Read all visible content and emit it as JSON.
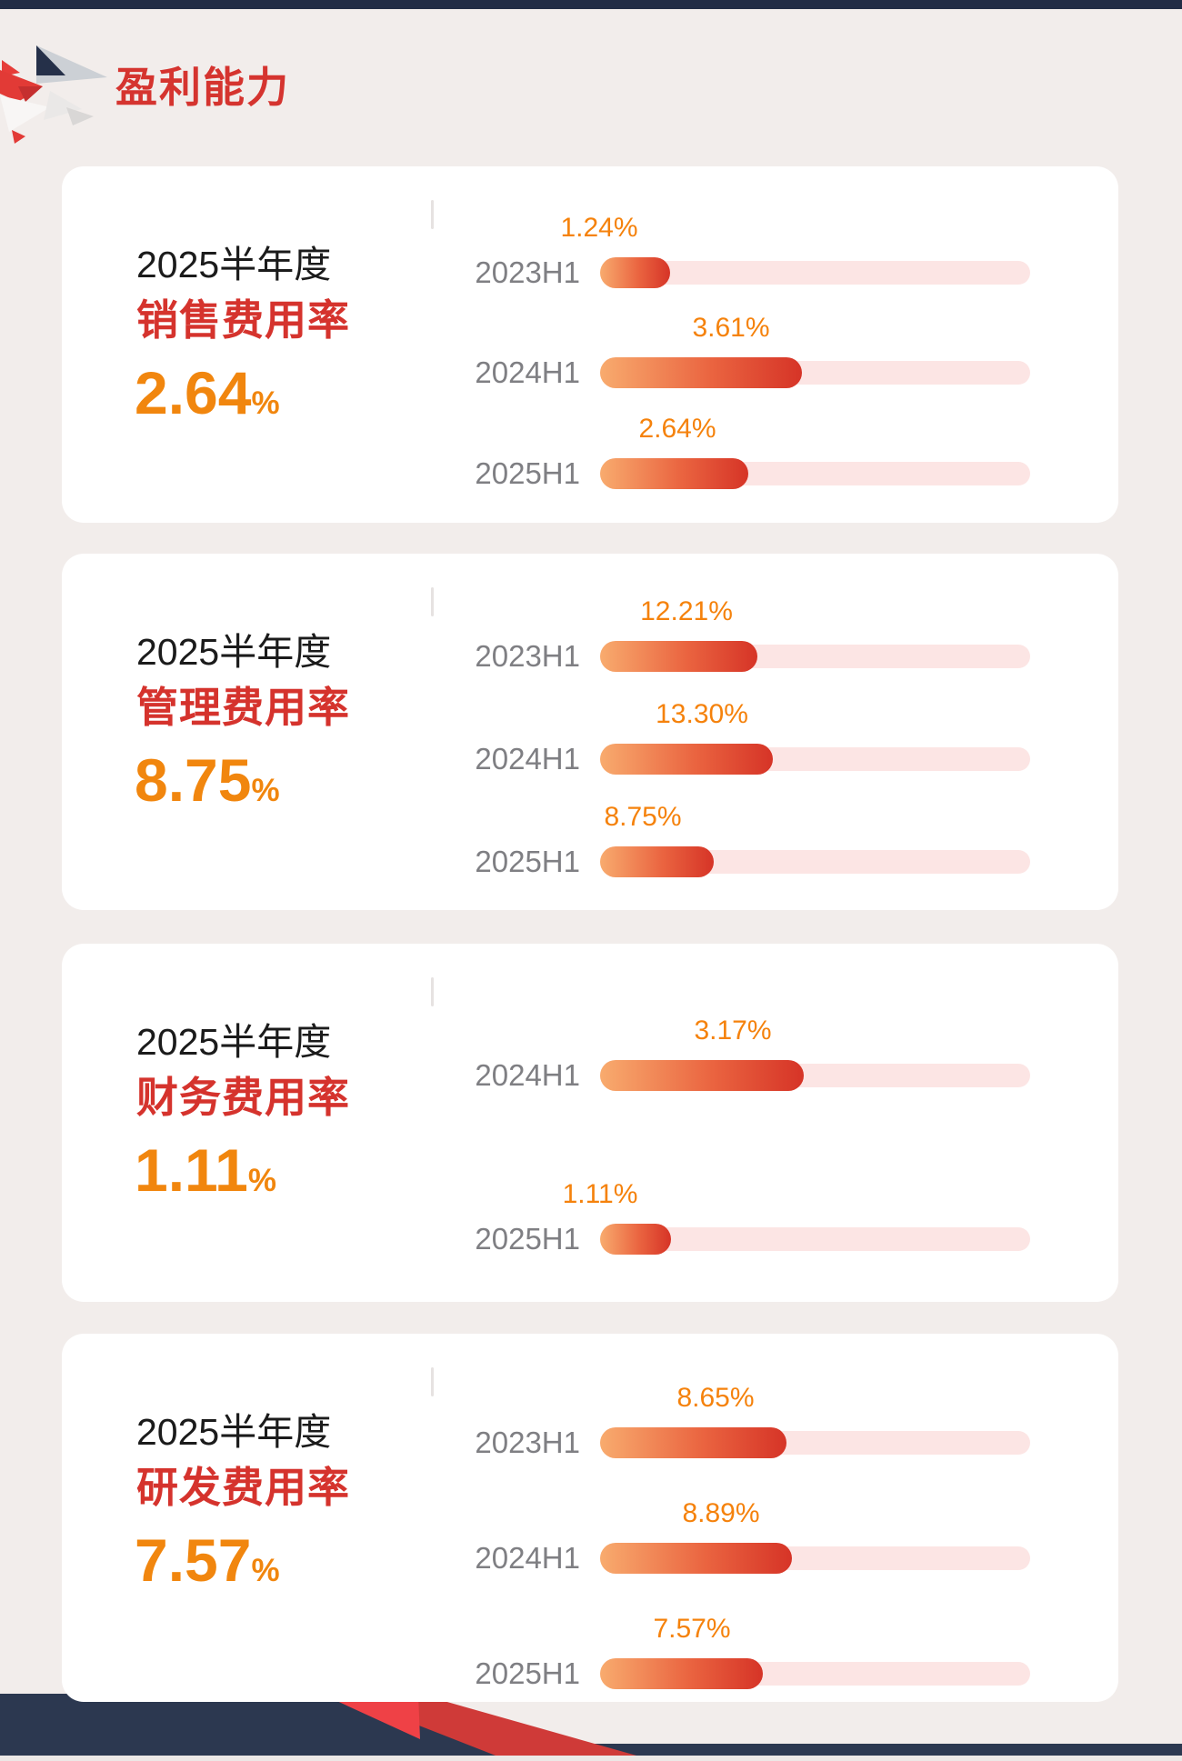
{
  "page": {
    "title": "盈利能力",
    "colors": {
      "background": "#f2edeb",
      "topbar_navy": "#232d46",
      "title_red": "#d5342f",
      "metric_red": "#d5332d",
      "big_value_orange": "#f1860e",
      "value_label_orange": "#f5820c",
      "year_label_gray": "#7f7f83",
      "bar_gradient_start": "#f8ab6e",
      "bar_gradient_end": "#d63427",
      "bar_track_pink": "#fce5e4",
      "deco_navy": "#2c3850",
      "deco_red": "#e8413c",
      "deco_silver": "#d7d5d4"
    }
  },
  "cards": [
    {
      "period": "2025半年度",
      "metric": "销售费用率",
      "value": "2.64",
      "unit": "%",
      "rows": [
        {
          "year": "2023H1",
          "label": "1.24%",
          "fill_pct": 16.3
        },
        {
          "year": "2024H1",
          "label": "3.61%",
          "fill_pct": 46.9
        },
        {
          "year": "2025H1",
          "label": "2.64%",
          "fill_pct": 34.5
        }
      ]
    },
    {
      "period": "2025半年度",
      "metric": "管理费用率",
      "value": "8.75",
      "unit": "%",
      "rows": [
        {
          "year": "2023H1",
          "label": "12.21%",
          "fill_pct": 36.6
        },
        {
          "year": "2024H1",
          "label": "13.30%",
          "fill_pct": 40.2
        },
        {
          "year": "2025H1",
          "label": "8.75%",
          "fill_pct": 26.4
        }
      ]
    },
    {
      "period": "2025半年度",
      "metric": "财务费用率",
      "value": "1.11",
      "unit": "%",
      "rows": [
        {
          "year": "2024H1",
          "label": "3.17%",
          "fill_pct": 47.4
        },
        {
          "year": "2025H1",
          "label": "1.11%",
          "fill_pct": 16.5
        }
      ]
    },
    {
      "period": "2025半年度",
      "metric": "研发费用率",
      "value": "7.57",
      "unit": "%",
      "rows": [
        {
          "year": "2023H1",
          "label": "8.65%",
          "fill_pct": 43.3
        },
        {
          "year": "2024H1",
          "label": "8.89%",
          "fill_pct": 44.6
        },
        {
          "year": "2025H1",
          "label": "7.57%",
          "fill_pct": 37.8
        }
      ]
    }
  ],
  "chart_data": [
    {
      "type": "bar",
      "title": "2025半年度 销售费用率 2.64%",
      "categories": [
        "2023H1",
        "2024H1",
        "2025H1"
      ],
      "values": [
        1.24,
        3.61,
        2.64
      ],
      "unit": "%",
      "orientation": "horizontal",
      "grid": false,
      "legend": "none"
    },
    {
      "type": "bar",
      "title": "2025半年度 管理费用率 8.75%",
      "categories": [
        "2023H1",
        "2024H1",
        "2025H1"
      ],
      "values": [
        12.21,
        13.3,
        8.75
      ],
      "unit": "%",
      "orientation": "horizontal",
      "grid": false,
      "legend": "none"
    },
    {
      "type": "bar",
      "title": "2025半年度 财务费用率 1.11%",
      "categories": [
        "2024H1",
        "2025H1"
      ],
      "values": [
        3.17,
        1.11
      ],
      "unit": "%",
      "orientation": "horizontal",
      "grid": false,
      "legend": "none"
    },
    {
      "type": "bar",
      "title": "2025半年度 研发费用率 7.57%",
      "categories": [
        "2023H1",
        "2024H1",
        "2025H1"
      ],
      "values": [
        8.65,
        8.89,
        7.57
      ],
      "unit": "%",
      "orientation": "horizontal",
      "grid": false,
      "legend": "none"
    }
  ]
}
